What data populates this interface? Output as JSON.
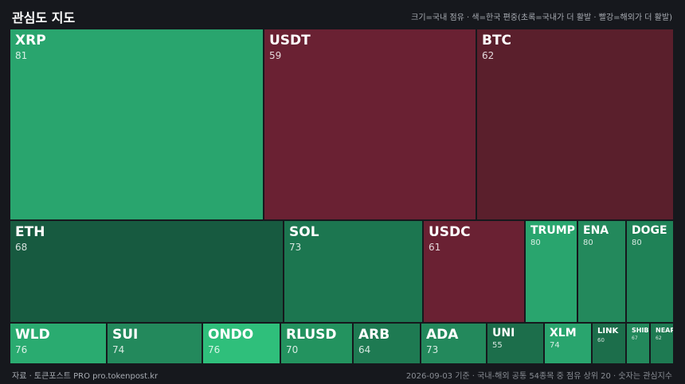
{
  "header": {
    "title": "관심도 지도",
    "legend": "크기=국내 점유 · 색=한국 편중(초록=국내가 더 활발 · 빨강=해외가 더 활발)"
  },
  "footer": {
    "source": "자료 · 토큰포스트 PRO  pro.tokenpost.kr",
    "note": "2026-09-03 기준 · 국내-해외 공통 54종목 중 점유 상위 20 · 숫자는 관심지수"
  },
  "colors": {
    "background": "#16181d",
    "green_bright": "#2fbf7b",
    "green": "#29a56e",
    "green_mid": "#23895c",
    "green_dark": "#1c6e4b",
    "green_deep": "#175a40",
    "red": "#6a2133",
    "red_dark": "#5a1f2c"
  },
  "chart_data": {
    "type": "treemap",
    "title": "관심도 지도",
    "items": [
      {
        "symbol": "XRP",
        "value": 81,
        "color": "#29a56e"
      },
      {
        "symbol": "USDT",
        "value": 59,
        "color": "#6a2133"
      },
      {
        "symbol": "BTC",
        "value": 62,
        "color": "#5a1f2c"
      },
      {
        "symbol": "ETH",
        "value": 68,
        "color": "#175a40"
      },
      {
        "symbol": "SOL",
        "value": 73,
        "color": "#1c7650"
      },
      {
        "symbol": "USDC",
        "value": 61,
        "color": "#6a2133"
      },
      {
        "symbol": "TRUMP",
        "value": 80,
        "color": "#29a56e"
      },
      {
        "symbol": "ENA",
        "value": 80,
        "color": "#23895c"
      },
      {
        "symbol": "DOGE",
        "value": 80,
        "color": "#1f8257"
      },
      {
        "symbol": "WLD",
        "value": 76,
        "color": "#2aab70"
      },
      {
        "symbol": "SUI",
        "value": 74,
        "color": "#23895c"
      },
      {
        "symbol": "ONDO",
        "value": 76,
        "color": "#2fbf7b"
      },
      {
        "symbol": "RLUSD",
        "value": 70,
        "color": "#23935f"
      },
      {
        "symbol": "ARB",
        "value": 64,
        "color": "#1e7a52"
      },
      {
        "symbol": "ADA",
        "value": 73,
        "color": "#23895c"
      },
      {
        "symbol": "UNI",
        "value": 55,
        "color": "#1c6e4b"
      },
      {
        "symbol": "XLM",
        "value": 74,
        "color": "#29a56e"
      },
      {
        "symbol": "LINK",
        "value": 60,
        "color": "#1c6e4b"
      },
      {
        "symbol": "SHIB",
        "value": 67,
        "color": "#23895c"
      },
      {
        "symbol": "NEAR",
        "value": 62,
        "color": "#1e7a52"
      }
    ]
  }
}
